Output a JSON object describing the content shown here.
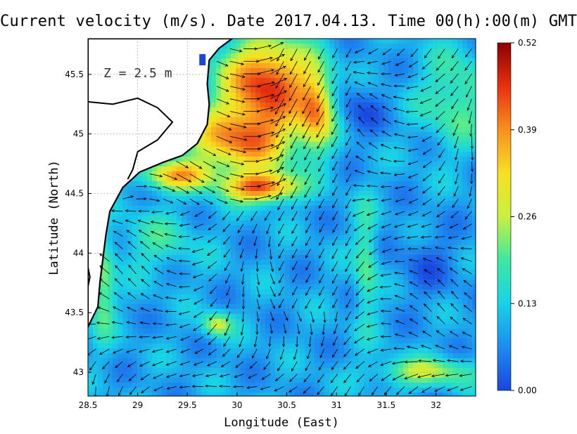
{
  "title": "Current velocity (m/s). Date 2017.04.13. Time 00(h):00(m) GMT",
  "depth_label": "Z = 2.5 m",
  "chart_data": {
    "type": "heatmap",
    "variable": "Current velocity",
    "units": "m/s",
    "xlabel": "Longitude (East)",
    "ylabel": "Latitude (North)",
    "xlim": [
      28.5,
      32.4
    ],
    "ylim": [
      42.8,
      45.8
    ],
    "x_ticks": [
      "28.5",
      "29",
      "29.5",
      "30",
      "30.5",
      "31",
      "31.5",
      "32"
    ],
    "y_ticks": [
      "43",
      "43.5",
      "44",
      "44.5",
      "45",
      "45.5"
    ],
    "colorbar": {
      "ticks": [
        "0.00",
        "0.13",
        "0.26",
        "0.39",
        "0.52"
      ],
      "range": [
        0,
        0.52
      ],
      "colors": [
        "#1a46e0",
        "#1c8cf0",
        "#18d2e8",
        "#3ee8a0",
        "#c8f040",
        "#f8e020",
        "#f89020",
        "#e83010",
        "#8c0000"
      ]
    },
    "land_color": "#ffffff",
    "coast_color": "#000000",
    "arrows": "true",
    "grid": "dotted"
  }
}
